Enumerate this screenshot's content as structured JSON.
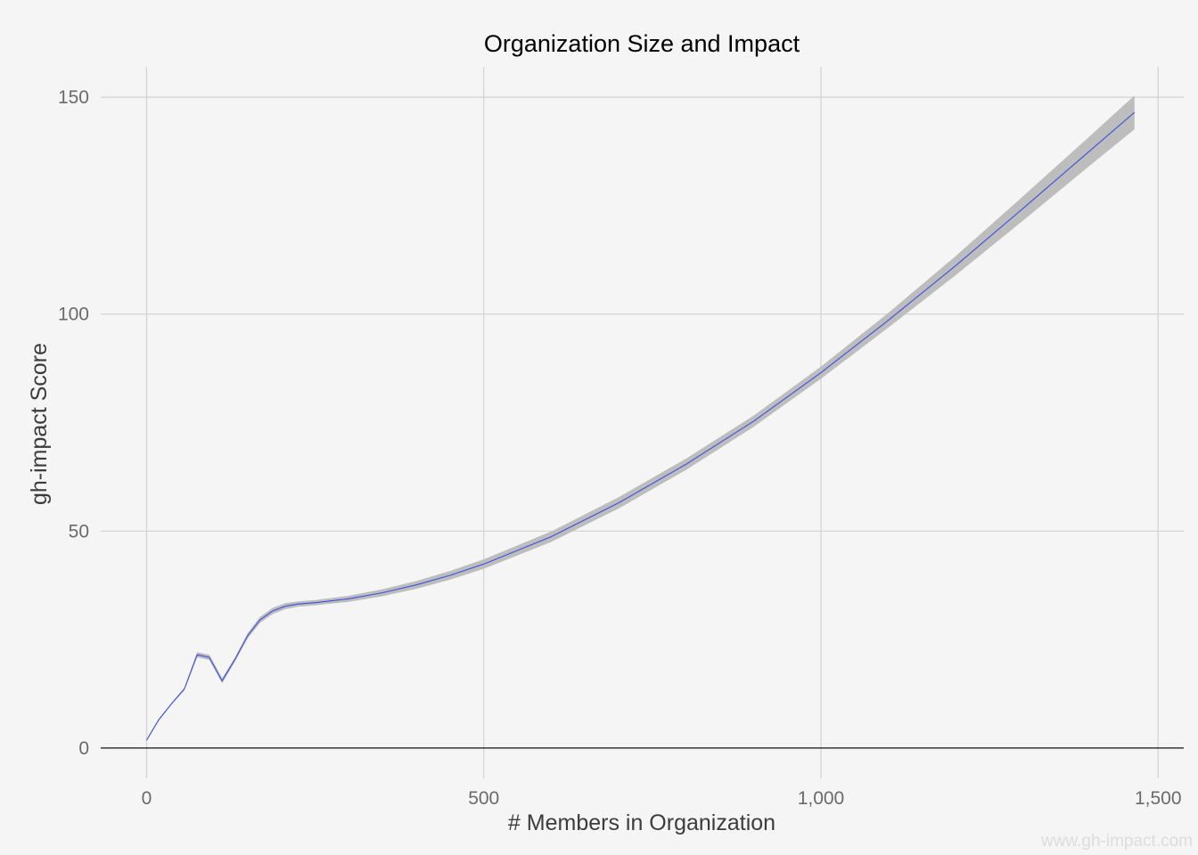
{
  "chart_data": {
    "type": "line",
    "title": "Organization Size and Impact",
    "xlabel": "# Members in Organization",
    "ylabel": "gh-impact Score",
    "xlim": [
      -68,
      1538
    ],
    "ylim": [
      -7,
      157
    ],
    "x_ticks": [
      0,
      500,
      1000,
      1500
    ],
    "x_tick_labels": [
      "0",
      "500",
      "1,000",
      "1,500"
    ],
    "y_ticks": [
      0,
      50,
      100,
      150
    ],
    "y_tick_labels": [
      "0",
      "50",
      "100",
      "150"
    ],
    "grid": true,
    "legend": "none",
    "colors": {
      "background": "#f5f5f5",
      "fit_line": "#3b50e0",
      "confidence_band": "#bdbdbd",
      "grid": "#d2d2d2"
    },
    "series": [
      {
        "values": [
          {
            "x": 0,
            "y": 1.8,
            "lo": 1.6,
            "hi": 2.0
          },
          {
            "x": 18,
            "y": 6.5,
            "lo": 6.3,
            "hi": 6.7
          },
          {
            "x": 37,
            "y": 10.2,
            "lo": 10.0,
            "hi": 10.4
          },
          {
            "x": 56,
            "y": 13.6,
            "lo": 13.3,
            "hi": 13.9
          },
          {
            "x": 75,
            "y": 21.5,
            "lo": 20.9,
            "hi": 22.1
          },
          {
            "x": 93,
            "y": 20.9,
            "lo": 20.3,
            "hi": 21.5
          },
          {
            "x": 112,
            "y": 15.5,
            "lo": 14.9,
            "hi": 16.1
          },
          {
            "x": 131,
            "y": 20.4,
            "lo": 19.9,
            "hi": 20.9
          },
          {
            "x": 150,
            "y": 25.9,
            "lo": 25.3,
            "hi": 26.5
          },
          {
            "x": 168,
            "y": 29.5,
            "lo": 28.8,
            "hi": 30.2
          },
          {
            "x": 187,
            "y": 31.6,
            "lo": 30.9,
            "hi": 32.3
          },
          {
            "x": 206,
            "y": 32.7,
            "lo": 32.0,
            "hi": 33.4
          },
          {
            "x": 225,
            "y": 33.2,
            "lo": 32.6,
            "hi": 33.8
          },
          {
            "x": 250,
            "y": 33.5,
            "lo": 32.9,
            "hi": 34.1
          },
          {
            "x": 300,
            "y": 34.4,
            "lo": 33.7,
            "hi": 35.1
          },
          {
            "x": 350,
            "y": 35.8,
            "lo": 35.0,
            "hi": 36.6
          },
          {
            "x": 400,
            "y": 37.6,
            "lo": 36.7,
            "hi": 38.5
          },
          {
            "x": 450,
            "y": 39.8,
            "lo": 38.8,
            "hi": 40.8
          },
          {
            "x": 500,
            "y": 42.4,
            "lo": 41.3,
            "hi": 43.5
          },
          {
            "x": 600,
            "y": 48.7,
            "lo": 47.5,
            "hi": 49.9
          },
          {
            "x": 700,
            "y": 56.5,
            "lo": 55.2,
            "hi": 57.8
          },
          {
            "x": 800,
            "y": 65.4,
            "lo": 64.1,
            "hi": 66.7
          },
          {
            "x": 900,
            "y": 75.3,
            "lo": 74.0,
            "hi": 76.6
          },
          {
            "x": 1000,
            "y": 86.5,
            "lo": 85.1,
            "hi": 87.9
          },
          {
            "x": 1100,
            "y": 98.6,
            "lo": 96.9,
            "hi": 100.3
          },
          {
            "x": 1200,
            "y": 111.2,
            "lo": 109.0,
            "hi": 113.4
          },
          {
            "x": 1300,
            "y": 124.4,
            "lo": 121.6,
            "hi": 127.2
          },
          {
            "x": 1400,
            "y": 137.8,
            "lo": 134.4,
            "hi": 141.2
          },
          {
            "x": 1465,
            "y": 146.5,
            "lo": 142.6,
            "hi": 150.4
          }
        ]
      }
    ]
  },
  "watermark": "www.gh-impact.com"
}
